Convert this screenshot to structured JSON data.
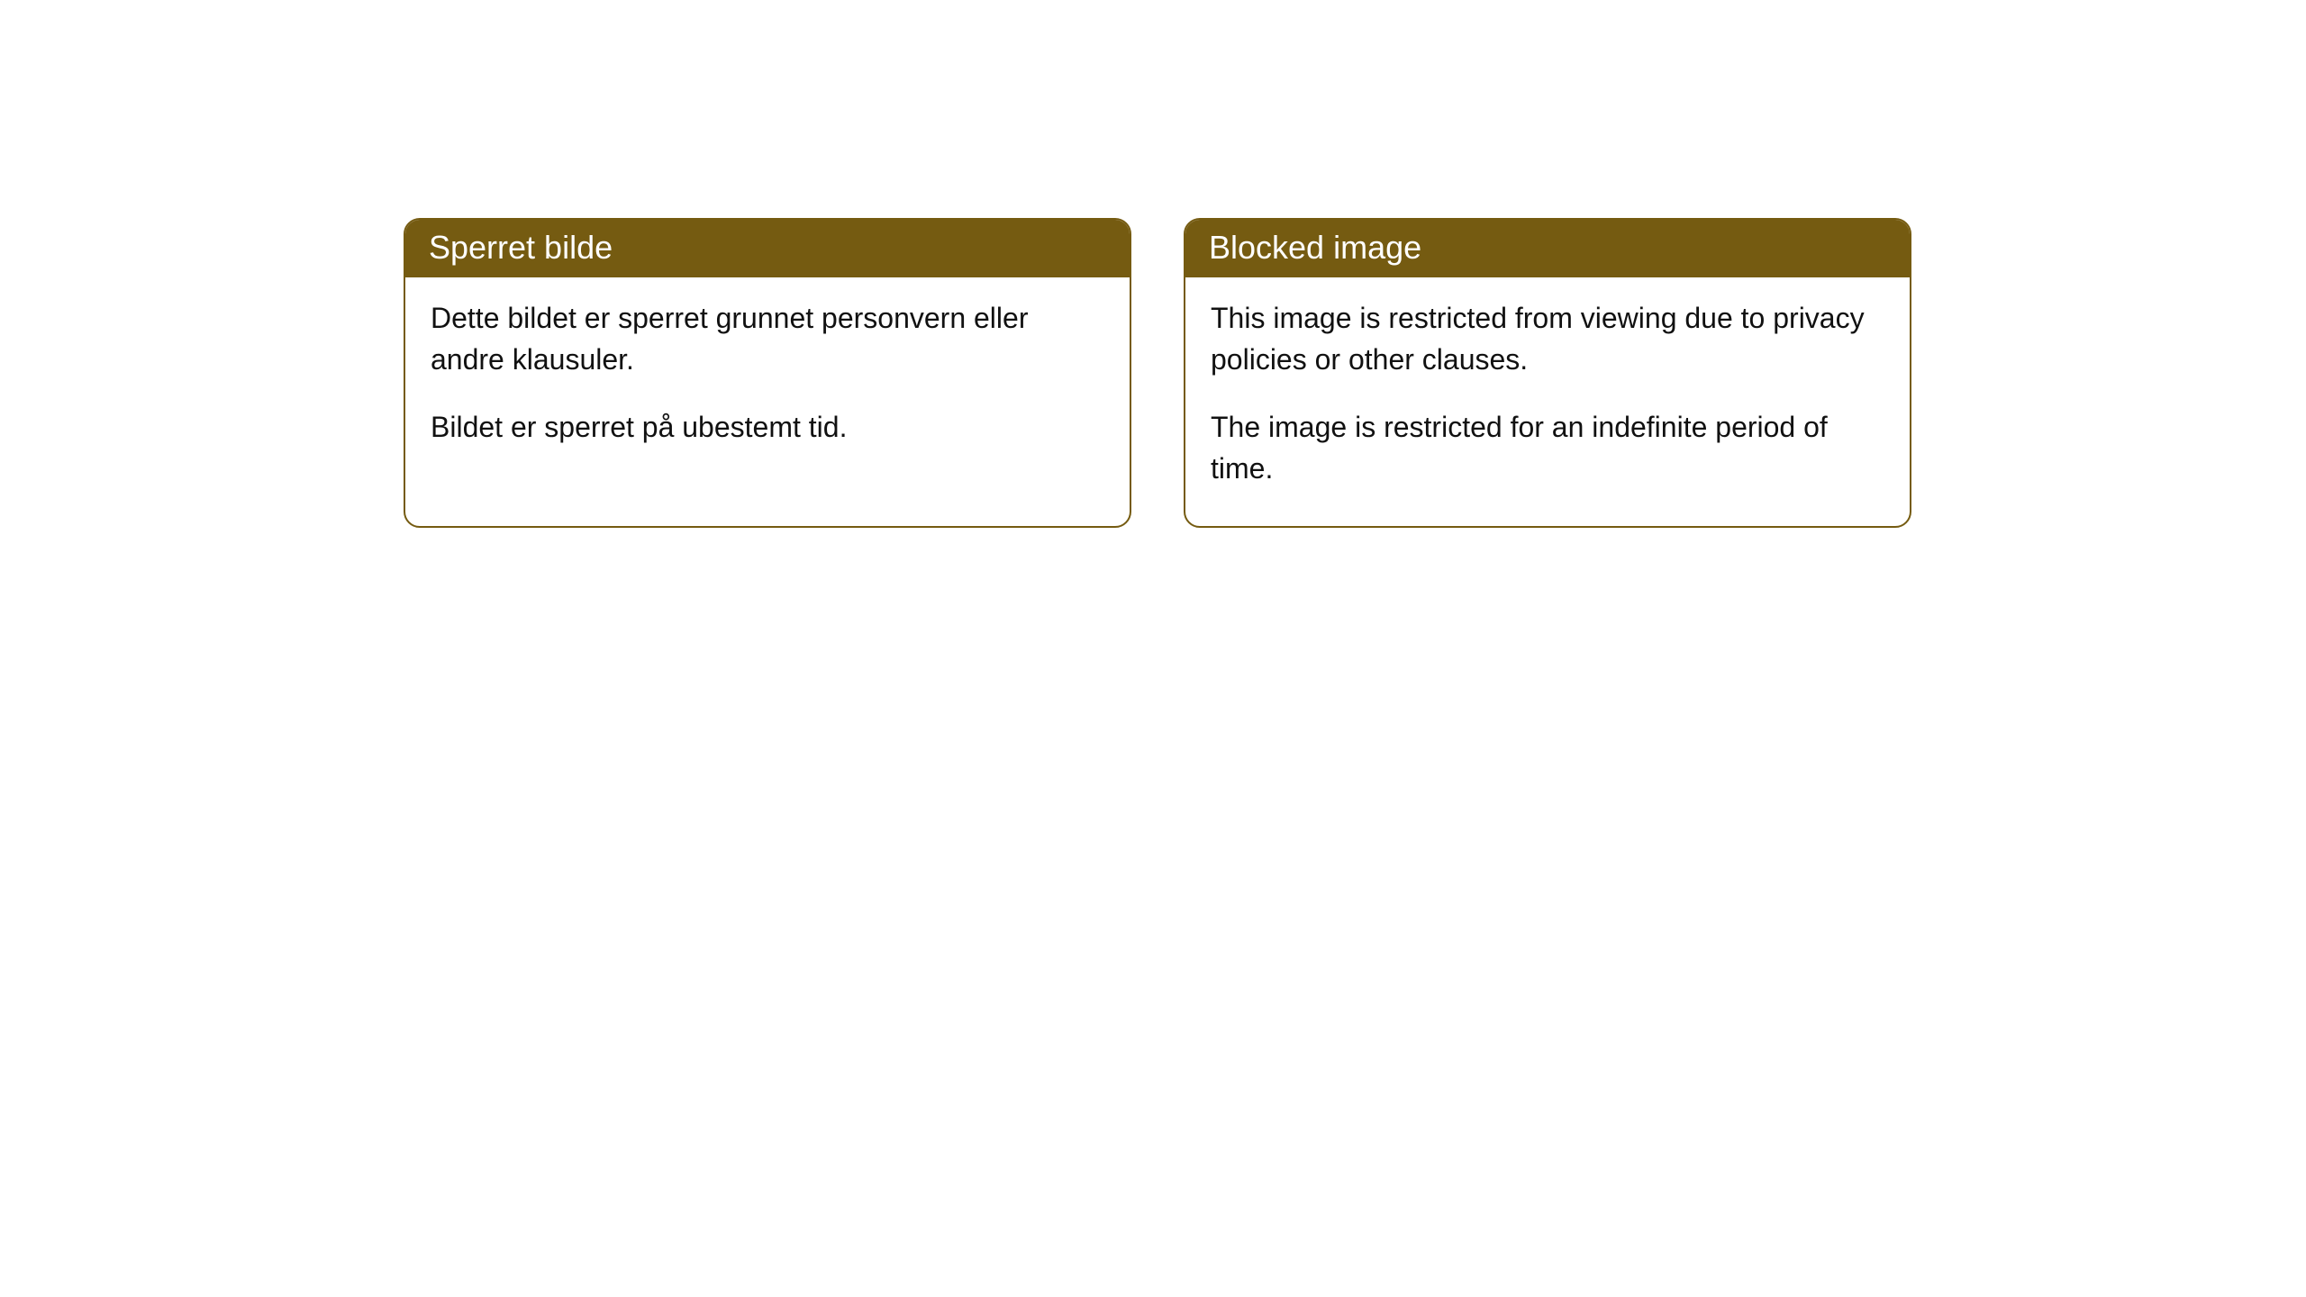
{
  "cards": [
    {
      "title": "Sperret bilde",
      "para1": "Dette bildet er sperret grunnet personvern eller andre klausuler.",
      "para2": "Bildet er sperret på ubestemt tid."
    },
    {
      "title": "Blocked image",
      "para1": "This image is restricted from viewing due to privacy policies or other clauses.",
      "para2": "The image is restricted for an indefinite period of time."
    }
  ],
  "colors": {
    "header_bg": "#755b11",
    "header_text": "#ffffff",
    "border": "#755b11",
    "body_bg": "#ffffff",
    "body_text": "#111111"
  }
}
